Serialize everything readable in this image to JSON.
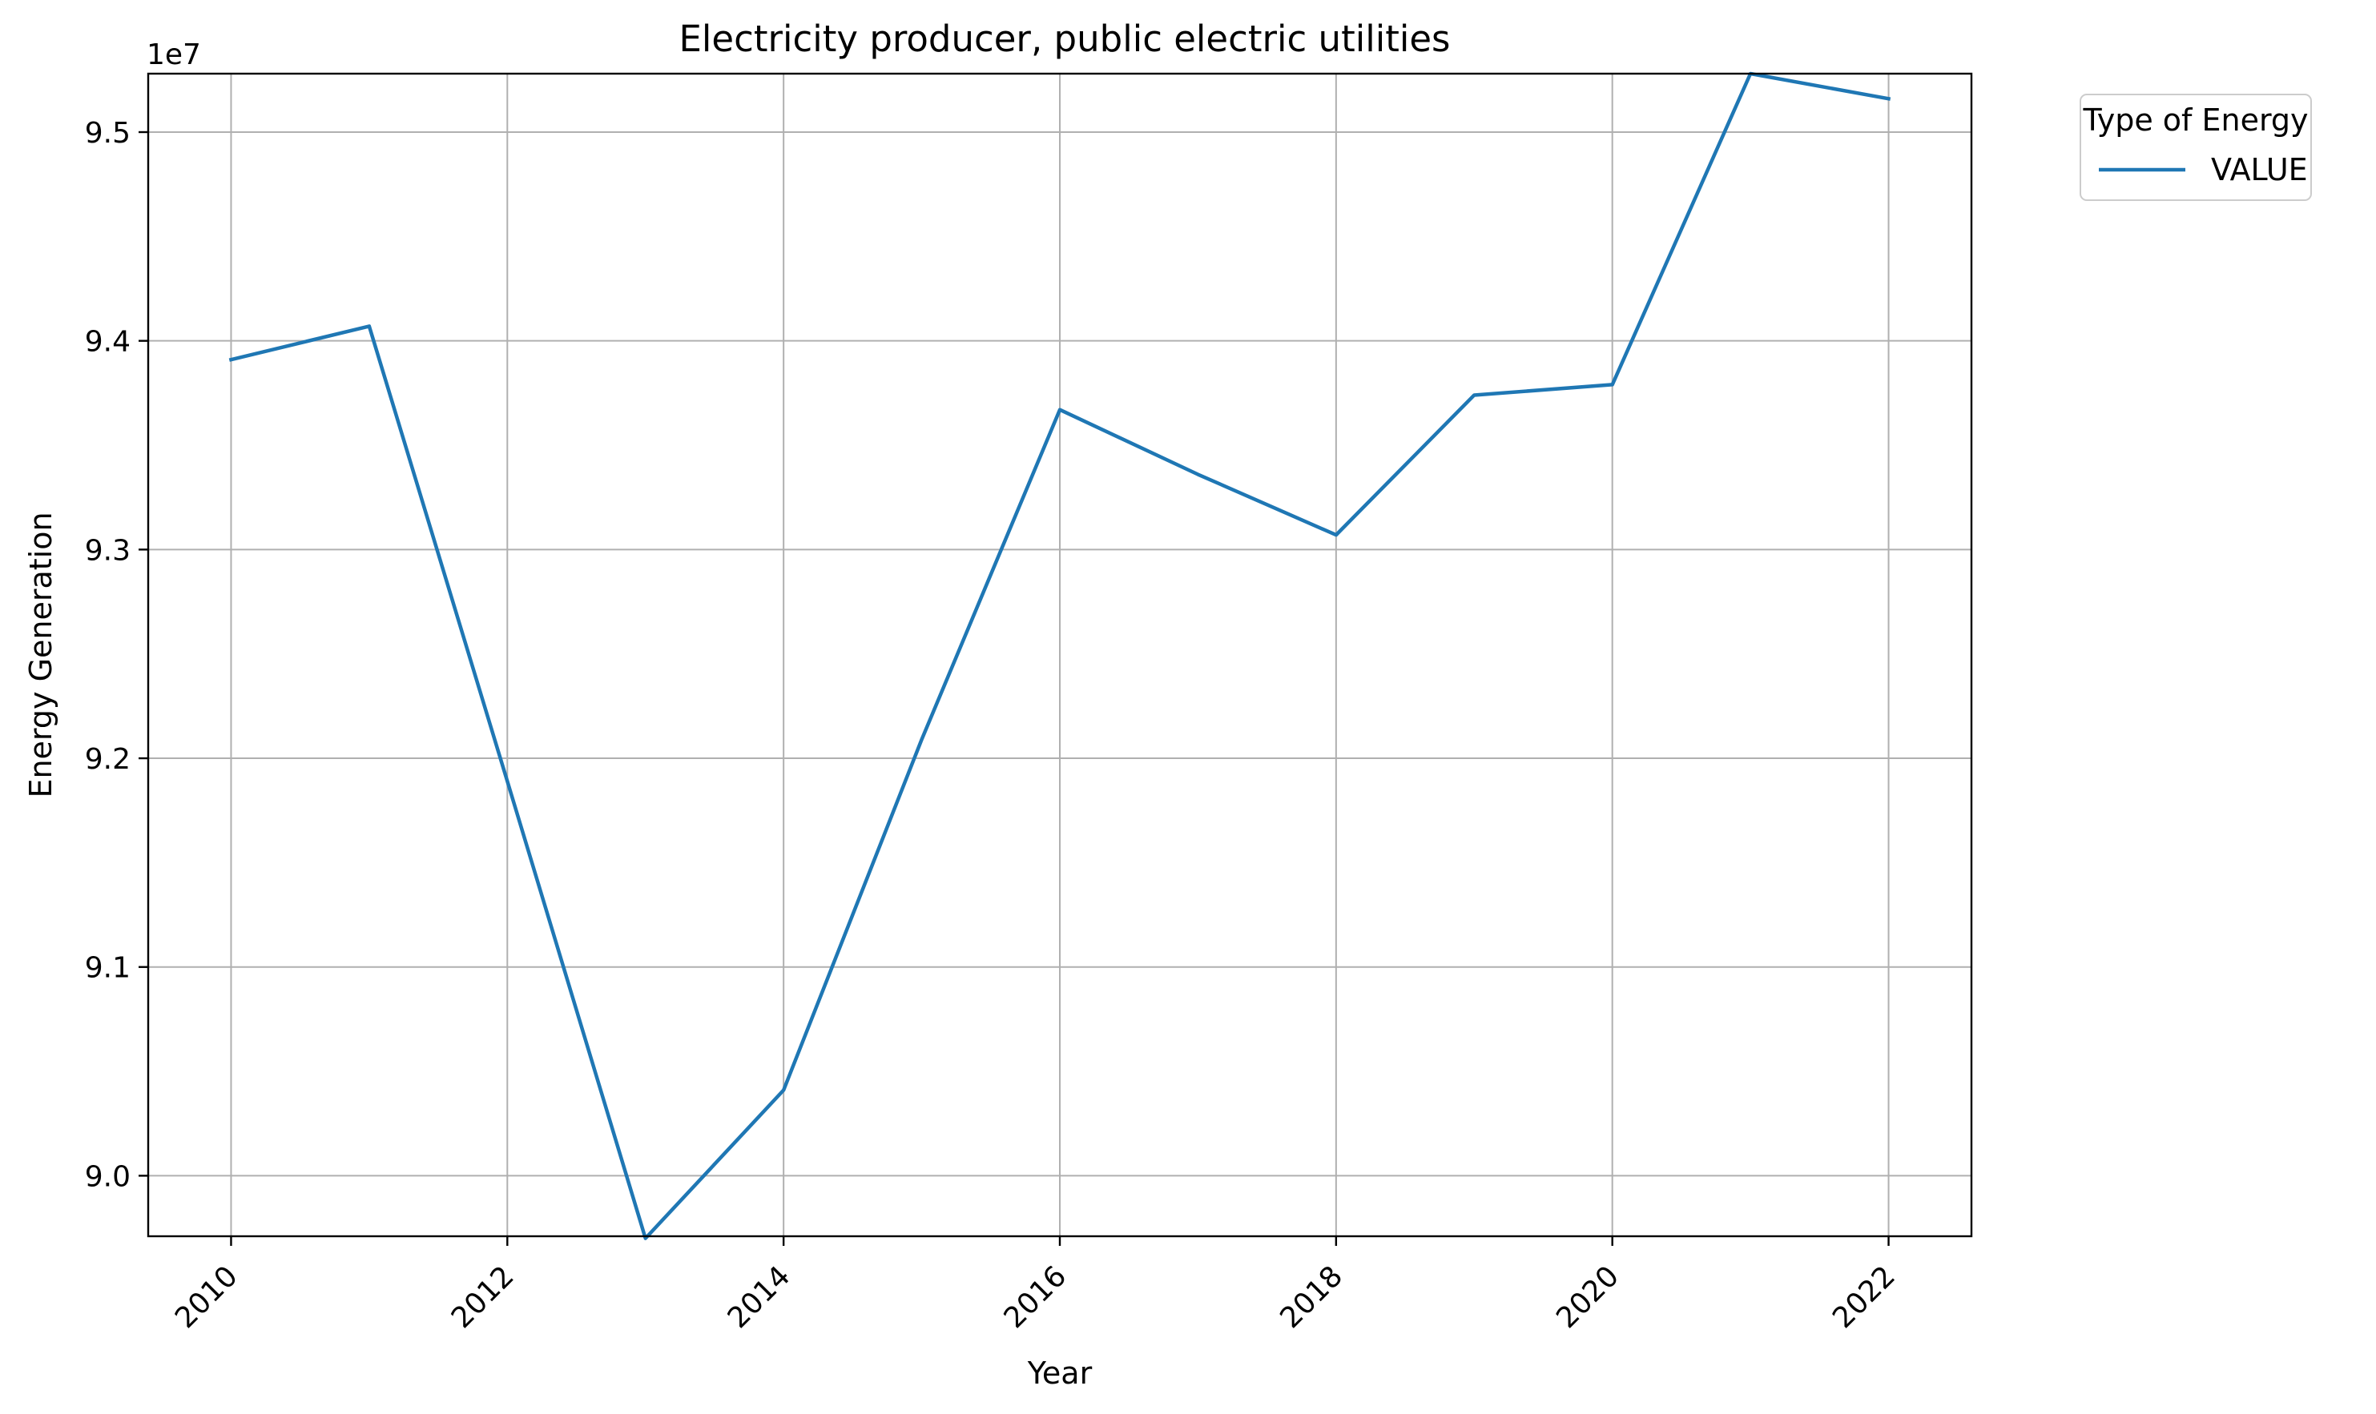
{
  "chart_data": {
    "type": "line",
    "title": "Electricity producer, public electric utilities",
    "xlabel": "Year",
    "ylabel": "Energy Generation",
    "y_offset_label": "1e7",
    "x": [
      2010,
      2011,
      2012,
      2013,
      2014,
      2015,
      2016,
      2017,
      2018,
      2019,
      2020,
      2021,
      2022
    ],
    "series": [
      {
        "name": "VALUE",
        "color": "#1f77b4",
        "values": [
          93910000,
          94070000,
          91890000,
          89700000,
          90410000,
          92090000,
          93670000,
          93360000,
          93070000,
          93740000,
          93790000,
          95280000,
          95160000
        ]
      }
    ],
    "xlim": [
      2009.4,
      2022.6
    ],
    "ylim": [
      89710000,
      95280000
    ],
    "x_ticks": [
      2010,
      2012,
      2014,
      2016,
      2018,
      2020,
      2022
    ],
    "x_tick_labels": [
      "2010",
      "2012",
      "2014",
      "2016",
      "2018",
      "2020",
      "2022"
    ],
    "y_ticks": [
      90000000,
      91000000,
      92000000,
      93000000,
      94000000,
      95000000
    ],
    "y_tick_labels": [
      "9.0",
      "9.1",
      "9.2",
      "9.3",
      "9.4",
      "9.5"
    ],
    "x_tick_rotation": 45,
    "grid": true,
    "legend": {
      "title": "Type of Energy",
      "placement": "outside-top-right",
      "entries": [
        "VALUE"
      ]
    }
  }
}
